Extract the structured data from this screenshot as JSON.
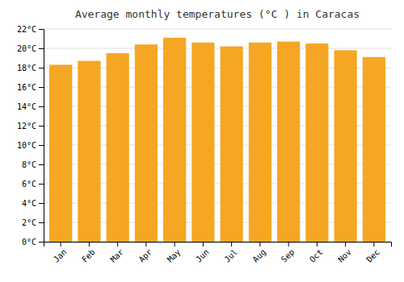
{
  "chart_data": {
    "type": "bar",
    "title": "Average monthly temperatures (°C ) in Caracas",
    "categories": [
      "Jan",
      "Feb",
      "Mar",
      "Apr",
      "May",
      "Jun",
      "Jul",
      "Aug",
      "Sep",
      "Oct",
      "Nov",
      "Dec"
    ],
    "values": [
      18.3,
      18.7,
      19.5,
      20.4,
      21.1,
      20.6,
      20.2,
      20.6,
      20.7,
      20.5,
      19.8,
      19.1
    ],
    "color": "#F5A623",
    "ylim": [
      0,
      22
    ],
    "yticks": [
      {
        "value": 0,
        "label": "0°C"
      },
      {
        "value": 2,
        "label": "2°C"
      },
      {
        "value": 4,
        "label": "4°C"
      },
      {
        "value": 6,
        "label": "6°C"
      },
      {
        "value": 8,
        "label": "8°C"
      },
      {
        "value": 10,
        "label": "10°C"
      },
      {
        "value": 12,
        "label": "12°C"
      },
      {
        "value": 14,
        "label": "14°C"
      },
      {
        "value": 16,
        "label": "16°C"
      },
      {
        "value": 18,
        "label": "18°C"
      },
      {
        "value": 20,
        "label": "20°C"
      },
      {
        "value": 22,
        "label": "22°C"
      }
    ],
    "grid": true
  }
}
